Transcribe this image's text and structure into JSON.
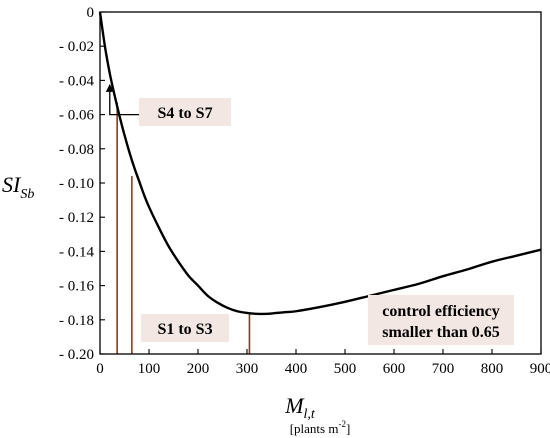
{
  "chart_data": {
    "type": "line",
    "ylabel": {
      "main": "SI",
      "sub": "Sb"
    },
    "xlabel": {
      "main": "M",
      "sub": "l,t",
      "units_prefix": "[plants m",
      "units_sup": "-2",
      "units_suffix": "]"
    },
    "xlim": [
      0,
      900
    ],
    "ylim": [
      -0.2,
      0
    ],
    "xticks": [
      0,
      100,
      200,
      300,
      400,
      500,
      600,
      700,
      800,
      900
    ],
    "xtick_labels": [
      "0",
      "100",
      "200",
      "300",
      "400",
      "500",
      "600",
      "700",
      "800",
      "900"
    ],
    "yticks": [
      0,
      -0.02,
      -0.04,
      -0.06,
      -0.08,
      -0.1,
      -0.12,
      -0.14,
      -0.16,
      -0.18,
      -0.2
    ],
    "ytick_labels": [
      "0",
      "- 0.02",
      "- 0.04",
      "- 0.06",
      "- 0.08",
      "- 0.10",
      "- 0.12",
      "- 0.14",
      "- 0.16",
      "- 0.18",
      "- 0.20"
    ],
    "grid": false,
    "series": [
      {
        "x": [
          0,
          10,
          20,
          30,
          40,
          50,
          60,
          70,
          80,
          90,
          100,
          120,
          140,
          160,
          180,
          200,
          220,
          240,
          260,
          280,
          300,
          320,
          340,
          360,
          380,
          400,
          450,
          500,
          550,
          600,
          650,
          700,
          750,
          800,
          850,
          900
        ],
        "y": [
          0,
          -0.02,
          -0.036,
          -0.049,
          -0.061,
          -0.072,
          -0.082,
          -0.091,
          -0.099,
          -0.107,
          -0.114,
          -0.126,
          -0.137,
          -0.146,
          -0.154,
          -0.16,
          -0.166,
          -0.17,
          -0.173,
          -0.175,
          -0.176,
          -0.1765,
          -0.1765,
          -0.176,
          -0.1755,
          -0.175,
          -0.1725,
          -0.1695,
          -0.166,
          -0.1625,
          -0.159,
          -0.1545,
          -0.1505,
          -0.146,
          -0.1425,
          -0.139
        ],
        "color": "#000000"
      }
    ],
    "vertical_lines": [
      {
        "x": 35,
        "y_top": -0.053,
        "color": "#8b3a1e"
      },
      {
        "x": 65,
        "y_top": -0.096,
        "color": "#8b3a1e"
      },
      {
        "x": 305,
        "y_top": -0.1755,
        "color": "#8b3a1e"
      }
    ],
    "arrow": {
      "x": 20,
      "from_y": -0.06,
      "to_y": -0.042
    },
    "annotations": [
      {
        "lines": [
          "S4 to S7"
        ]
      },
      {
        "lines": [
          "S1 to S3"
        ]
      },
      {
        "lines": [
          "control efficiency",
          "smaller than 0.65"
        ]
      }
    ],
    "colors": {
      "curve": "#000000",
      "markers": "#8b3a1e",
      "annotation_bg": "#f3e7e3"
    }
  }
}
